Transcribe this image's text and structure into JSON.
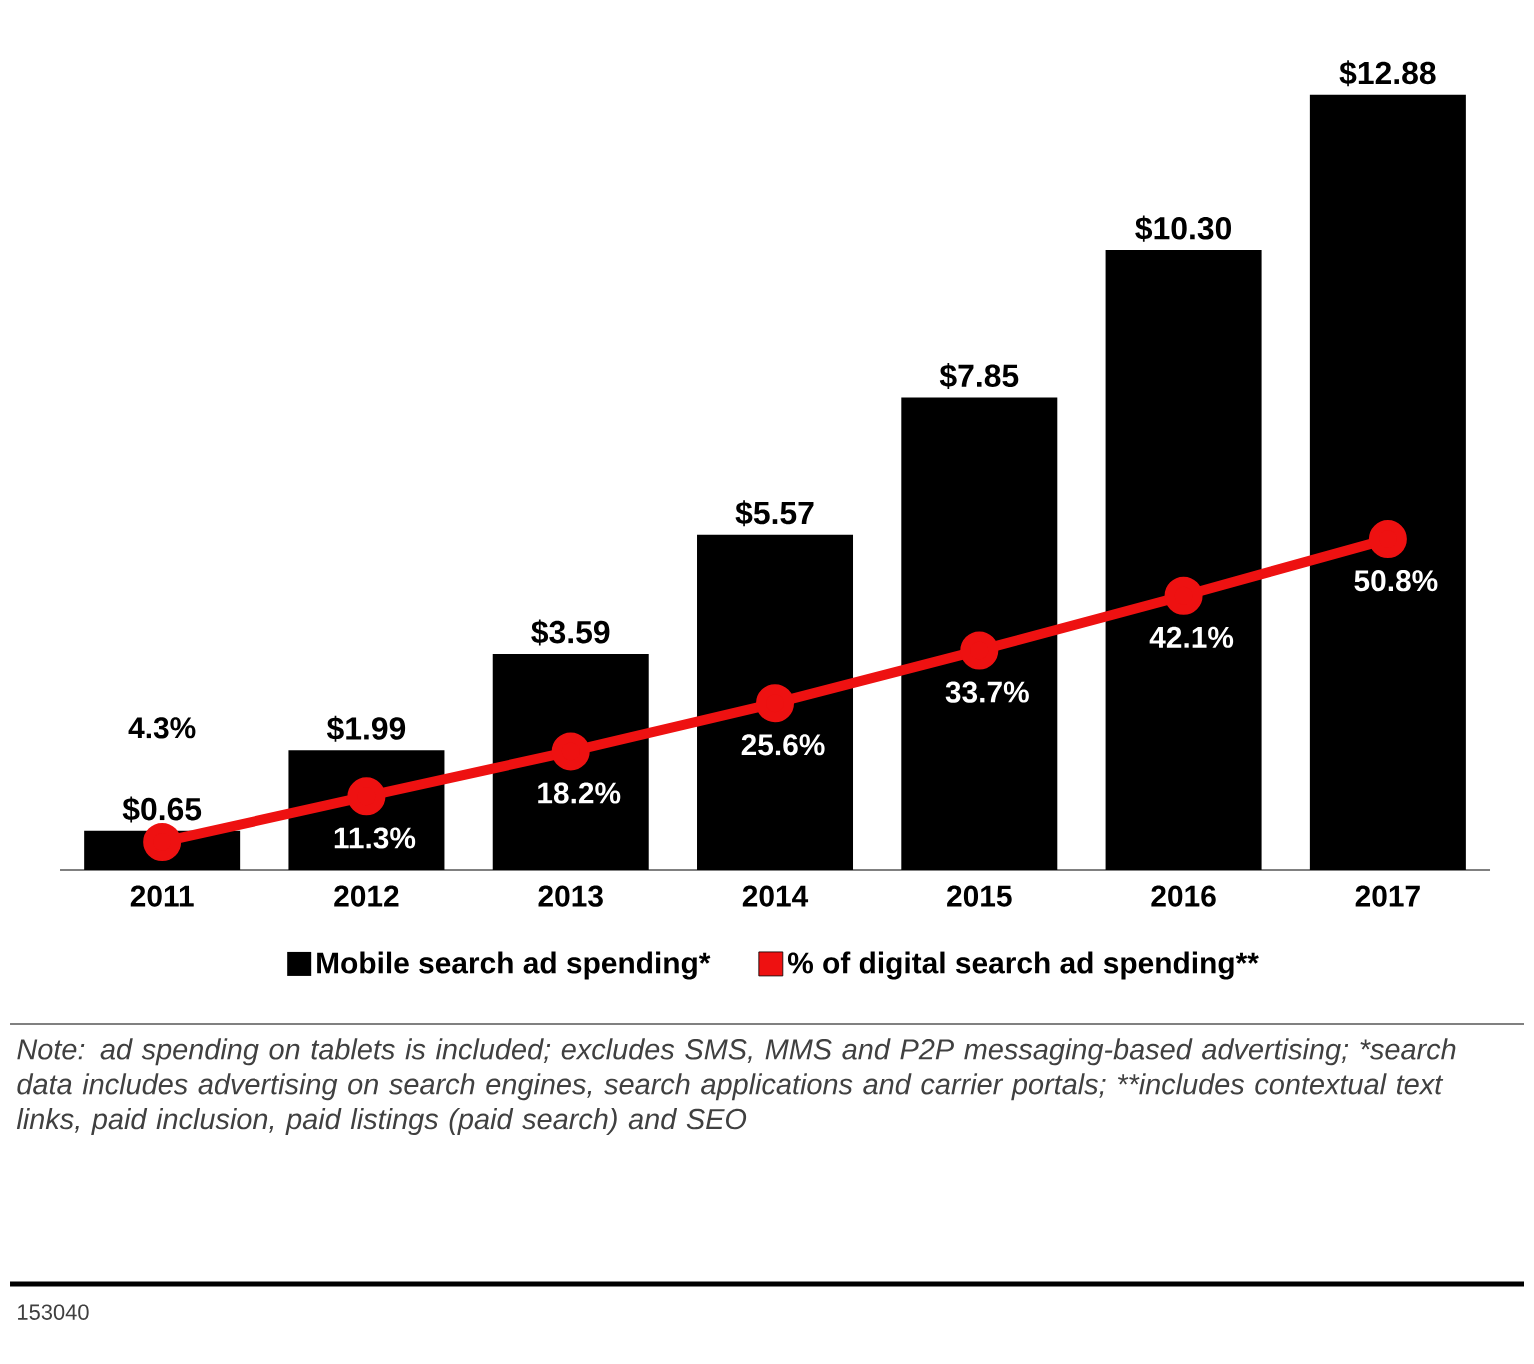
{
  "chart_data": {
    "type": "bar",
    "categories": [
      "2011",
      "2012",
      "2013",
      "2014",
      "2015",
      "2016",
      "2017"
    ],
    "series": [
      {
        "name": "Mobile search ad spending*",
        "color": "#000000",
        "values": [
          0.65,
          1.99,
          3.59,
          5.57,
          7.85,
          10.3,
          12.88
        ],
        "value_labels": [
          "$0.65",
          "$1.99",
          "$3.59",
          "$5.57",
          "$7.85",
          "$10.30",
          "$12.88"
        ]
      },
      {
        "type": "line",
        "name": "% of digital search ad spending**",
        "color": "#ee1111",
        "axis": "y2",
        "values": [
          4.3,
          11.3,
          18.2,
          25.6,
          33.7,
          42.1,
          50.8
        ],
        "value_labels": [
          "4.3%",
          "11.3%",
          "18.2%",
          "25.6%",
          "33.7%",
          "42.1%",
          "50.8%"
        ]
      }
    ],
    "legend": "bottom",
    "marker": "circle",
    "annotations": [
      "Note: ad spending on tablets is included; excludes SMS, MMS and P2P messaging-based advertising; *search data includes advertising on search engines, search applications and carrier portals; **includes contextual text links, paid inclusion, paid listings (paid search) and SEO",
      "153040"
    ]
  }
}
